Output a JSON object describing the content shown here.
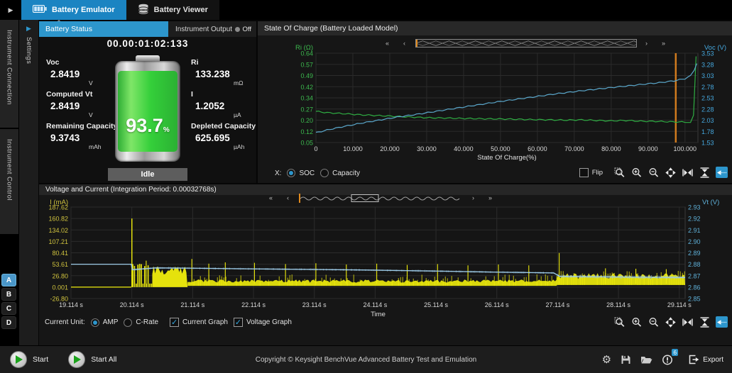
{
  "window": {
    "collapse_arrow": "▶",
    "tabs": [
      {
        "label": "Battery Emulator",
        "icon": "battery-icon",
        "active": true
      },
      {
        "label": "Battery Viewer",
        "icon": "battery-stack-icon",
        "active": false
      }
    ]
  },
  "sidebar": {
    "tabs": [
      "Instrument Connection",
      "Instrument Control"
    ],
    "settings_label": "Settings",
    "channels": [
      "A",
      "B",
      "C",
      "D"
    ],
    "active_channel": "A"
  },
  "battery_status": {
    "tab_label": "Battery Status",
    "instrument_output_label": "Instrument Output",
    "output_state": "Off",
    "elapsed": "00.00:01:02:133",
    "metrics": [
      {
        "label": "Voc",
        "value": "2.8419",
        "unit": "V"
      },
      {
        "label": "Ri",
        "value": "133.238",
        "unit": "mΩ"
      },
      {
        "label": "Computed Vt",
        "value": "2.8419",
        "unit": "V"
      },
      {
        "label": "I",
        "value": "1.2052",
        "unit": "µA"
      },
      {
        "label": "Remaining Capacity",
        "value": "9.3743",
        "unit": "mAh"
      },
      {
        "label": "Depleted Capacity",
        "value": "625.695",
        "unit": "µAh"
      }
    ],
    "soc_percent": "93.7",
    "soc_unit": "%",
    "state": "Idle"
  },
  "soc_panel": {
    "title": "State Of Charge (Battery Loaded Model)",
    "x_mode_label": "X:",
    "x_modes": [
      {
        "label": "SOC",
        "selected": true
      },
      {
        "label": "Capacity",
        "selected": false
      }
    ],
    "flip_label": "Flip",
    "flip_checked": false
  },
  "vc_panel": {
    "title": "Voltage and Current (Integration Period: 0.00032768s)",
    "current_unit_label": "Current Unit:",
    "unit_modes": [
      {
        "label": "AMP",
        "selected": true
      },
      {
        "label": "C-Rate",
        "selected": false
      }
    ],
    "graph_toggles": [
      {
        "label": "Current Graph",
        "checked": true
      },
      {
        "label": "Voltage Graph",
        "checked": true
      }
    ]
  },
  "chart_toolbar": [
    {
      "name": "zoom-region-icon",
      "active": false
    },
    {
      "name": "zoom-in-icon",
      "active": false
    },
    {
      "name": "zoom-out-icon",
      "active": false
    },
    {
      "name": "fit-all-icon",
      "active": false
    },
    {
      "name": "fit-horizontal-icon",
      "active": false
    },
    {
      "name": "fit-vertical-icon",
      "active": false
    },
    {
      "name": "track-cursor-icon",
      "active": true
    }
  ],
  "footer": {
    "start_label": "Start",
    "start_all_label": "Start All",
    "copyright": "Copyright © Keysight BenchVue Advanced Battery Test and Emulation",
    "icons": [
      "gear-icon",
      "save-icon",
      "open-folder-icon",
      "error-icon",
      "export-icon"
    ],
    "error_count": "6",
    "export_label": "Export"
  },
  "chart_data": [
    {
      "type": "line",
      "title": "State Of Charge (Battery Loaded Model)",
      "xlabel": "State Of Charge(%)",
      "x_ticks": [
        "0",
        "10.000",
        "20.000",
        "30.000",
        "40.000",
        "50.000",
        "60.000",
        "70.000",
        "80.000",
        "90.000",
        "100.000"
      ],
      "x_tick_values": [
        0,
        10,
        20,
        30,
        40,
        50,
        60,
        70,
        80,
        90,
        100
      ],
      "xlim": [
        0,
        103.5
      ],
      "grid": true,
      "cursor_x": 97.5,
      "cursor_color": "#d07a1e",
      "left_axis": {
        "label": "Ri (Ω)",
        "color": "#3cb94e",
        "ticks": [
          "0.64",
          "0.57",
          "0.49",
          "0.42",
          "0.34",
          "0.27",
          "0.20",
          "0.12",
          "0.05"
        ],
        "lim": [
          0.05,
          0.64
        ]
      },
      "right_axis": {
        "label": "Voc (V)",
        "color": "#45a7dd",
        "ticks": [
          "3.53",
          "3.28",
          "3.03",
          "2.78",
          "2.53",
          "2.28",
          "2.03",
          "1.78",
          "1.53"
        ],
        "lim": [
          1.53,
          3.53
        ]
      },
      "series": [
        {
          "name": "Ri",
          "axis": "left",
          "color": "#2fae43",
          "points": [
            [
              0,
              0.256
            ],
            [
              3,
              0.247
            ],
            [
              8,
              0.24
            ],
            [
              12,
              0.233
            ],
            [
              18,
              0.227
            ],
            [
              25,
              0.219
            ],
            [
              30,
              0.214
            ],
            [
              38,
              0.21
            ],
            [
              45,
              0.207
            ],
            [
              52,
              0.205
            ],
            [
              58,
              0.202
            ],
            [
              63,
              0.2
            ],
            [
              68,
              0.198
            ],
            [
              72,
              0.2
            ],
            [
              76,
              0.196
            ],
            [
              80,
              0.193
            ],
            [
              84,
              0.196
            ],
            [
              88,
              0.191
            ],
            [
              92,
              0.19
            ],
            [
              96,
              0.187
            ],
            [
              100,
              0.185
            ],
            [
              101.5,
              0.182
            ],
            [
              102.3,
              0.23
            ],
            [
              103.0,
              0.62
            ]
          ]
        },
        {
          "name": "Voc",
          "axis": "right",
          "color": "#5ba8cc",
          "points": [
            [
              0,
              1.75
            ],
            [
              3,
              1.81
            ],
            [
              7,
              1.88
            ],
            [
              12,
              1.96
            ],
            [
              17,
              2.03
            ],
            [
              22,
              2.1
            ],
            [
              28,
              2.17
            ],
            [
              35,
              2.26
            ],
            [
              42,
              2.35
            ],
            [
              50,
              2.45
            ],
            [
              58,
              2.54
            ],
            [
              65,
              2.62
            ],
            [
              72,
              2.69
            ],
            [
              80,
              2.76
            ],
            [
              87,
              2.82
            ],
            [
              93,
              2.87
            ],
            [
              97,
              2.91
            ],
            [
              100,
              2.96
            ],
            [
              101.5,
              3.03
            ],
            [
              102.5,
              3.15
            ],
            [
              103.2,
              3.3
            ]
          ]
        }
      ]
    },
    {
      "type": "line",
      "title": "Voltage and Current",
      "xlabel": "Time",
      "x_ticks": [
        "19.114 s",
        "20.114 s",
        "21.114 s",
        "22.114 s",
        "23.114 s",
        "24.114 s",
        "25.114 s",
        "26.114 s",
        "27.114 s",
        "28.114 s",
        "29.114 s"
      ],
      "x_tick_values": [
        19.114,
        20.114,
        21.114,
        22.114,
        23.114,
        24.114,
        25.114,
        26.114,
        27.114,
        28.114,
        29.114
      ],
      "xlim": [
        19.114,
        29.21
      ],
      "grid": true,
      "left_axis": {
        "label": "I (mA)",
        "color": "#cfc23e",
        "ticks": [
          "187.62",
          "160.82",
          "134.02",
          "107.21",
          "80.41",
          "53.61",
          "26.80",
          "0.001",
          "-26.80"
        ],
        "lim": [
          -26.8,
          187.62
        ]
      },
      "right_axis": {
        "label": "Vt (V)",
        "color": "#5fb0d8",
        "ticks": [
          "2.93",
          "2.92",
          "2.91",
          "2.90",
          "2.89",
          "2.88",
          "2.87",
          "2.86",
          "2.85"
        ],
        "lim": [
          2.85,
          2.93
        ]
      },
      "current_series": {
        "name": "I",
        "color": "#f0ed0c",
        "baseline": [
          [
            19.114,
            0.0
          ],
          [
            20.105,
            0.0
          ]
        ],
        "initial_spike": [
          20.115,
          160.8
        ],
        "bands": [
          {
            "x0": 20.13,
            "x1": 20.45,
            "lo": 0,
            "hi": 55,
            "style": "pulse"
          },
          {
            "x0": 20.45,
            "x1": 21.03,
            "lo": 0,
            "hi": 50,
            "style": "solid"
          },
          {
            "x0": 21.03,
            "x1": 27.1,
            "lo": 3,
            "hi": 30,
            "style": "noise"
          },
          {
            "x0": 27.1,
            "x1": 29.21,
            "lo": 5,
            "hi": 38,
            "style": "dense"
          }
        ],
        "spikes": [
          [
            20.35,
            62
          ],
          [
            21.1,
            66
          ],
          [
            21.38,
            55
          ],
          [
            21.65,
            58
          ],
          [
            22.13,
            57
          ],
          [
            22.64,
            54
          ],
          [
            23.14,
            56
          ],
          [
            23.64,
            53
          ],
          [
            24.14,
            55
          ],
          [
            24.64,
            52
          ],
          [
            25.14,
            54
          ],
          [
            25.64,
            51
          ],
          [
            26.14,
            53
          ],
          [
            26.64,
            51
          ],
          [
            27.14,
            80
          ],
          [
            27.9,
            44
          ],
          [
            28.4,
            43
          ],
          [
            28.9,
            42
          ]
        ]
      },
      "voltage_series": {
        "name": "Vt",
        "color": "#9dcbe8",
        "points": [
          [
            19.114,
            2.88
          ],
          [
            20.105,
            2.88
          ],
          [
            20.12,
            2.8752
          ],
          [
            20.5,
            2.8768
          ],
          [
            21.0,
            2.8766
          ],
          [
            22.0,
            2.876
          ],
          [
            23.0,
            2.8755
          ],
          [
            24.0,
            2.8749
          ],
          [
            25.0,
            2.8741
          ],
          [
            26.0,
            2.8732
          ],
          [
            27.05,
            2.8724
          ],
          [
            27.15,
            2.8694
          ],
          [
            28.0,
            2.8689
          ],
          [
            29.21,
            2.8684
          ]
        ],
        "noise_band": 0.0009
      }
    }
  ]
}
